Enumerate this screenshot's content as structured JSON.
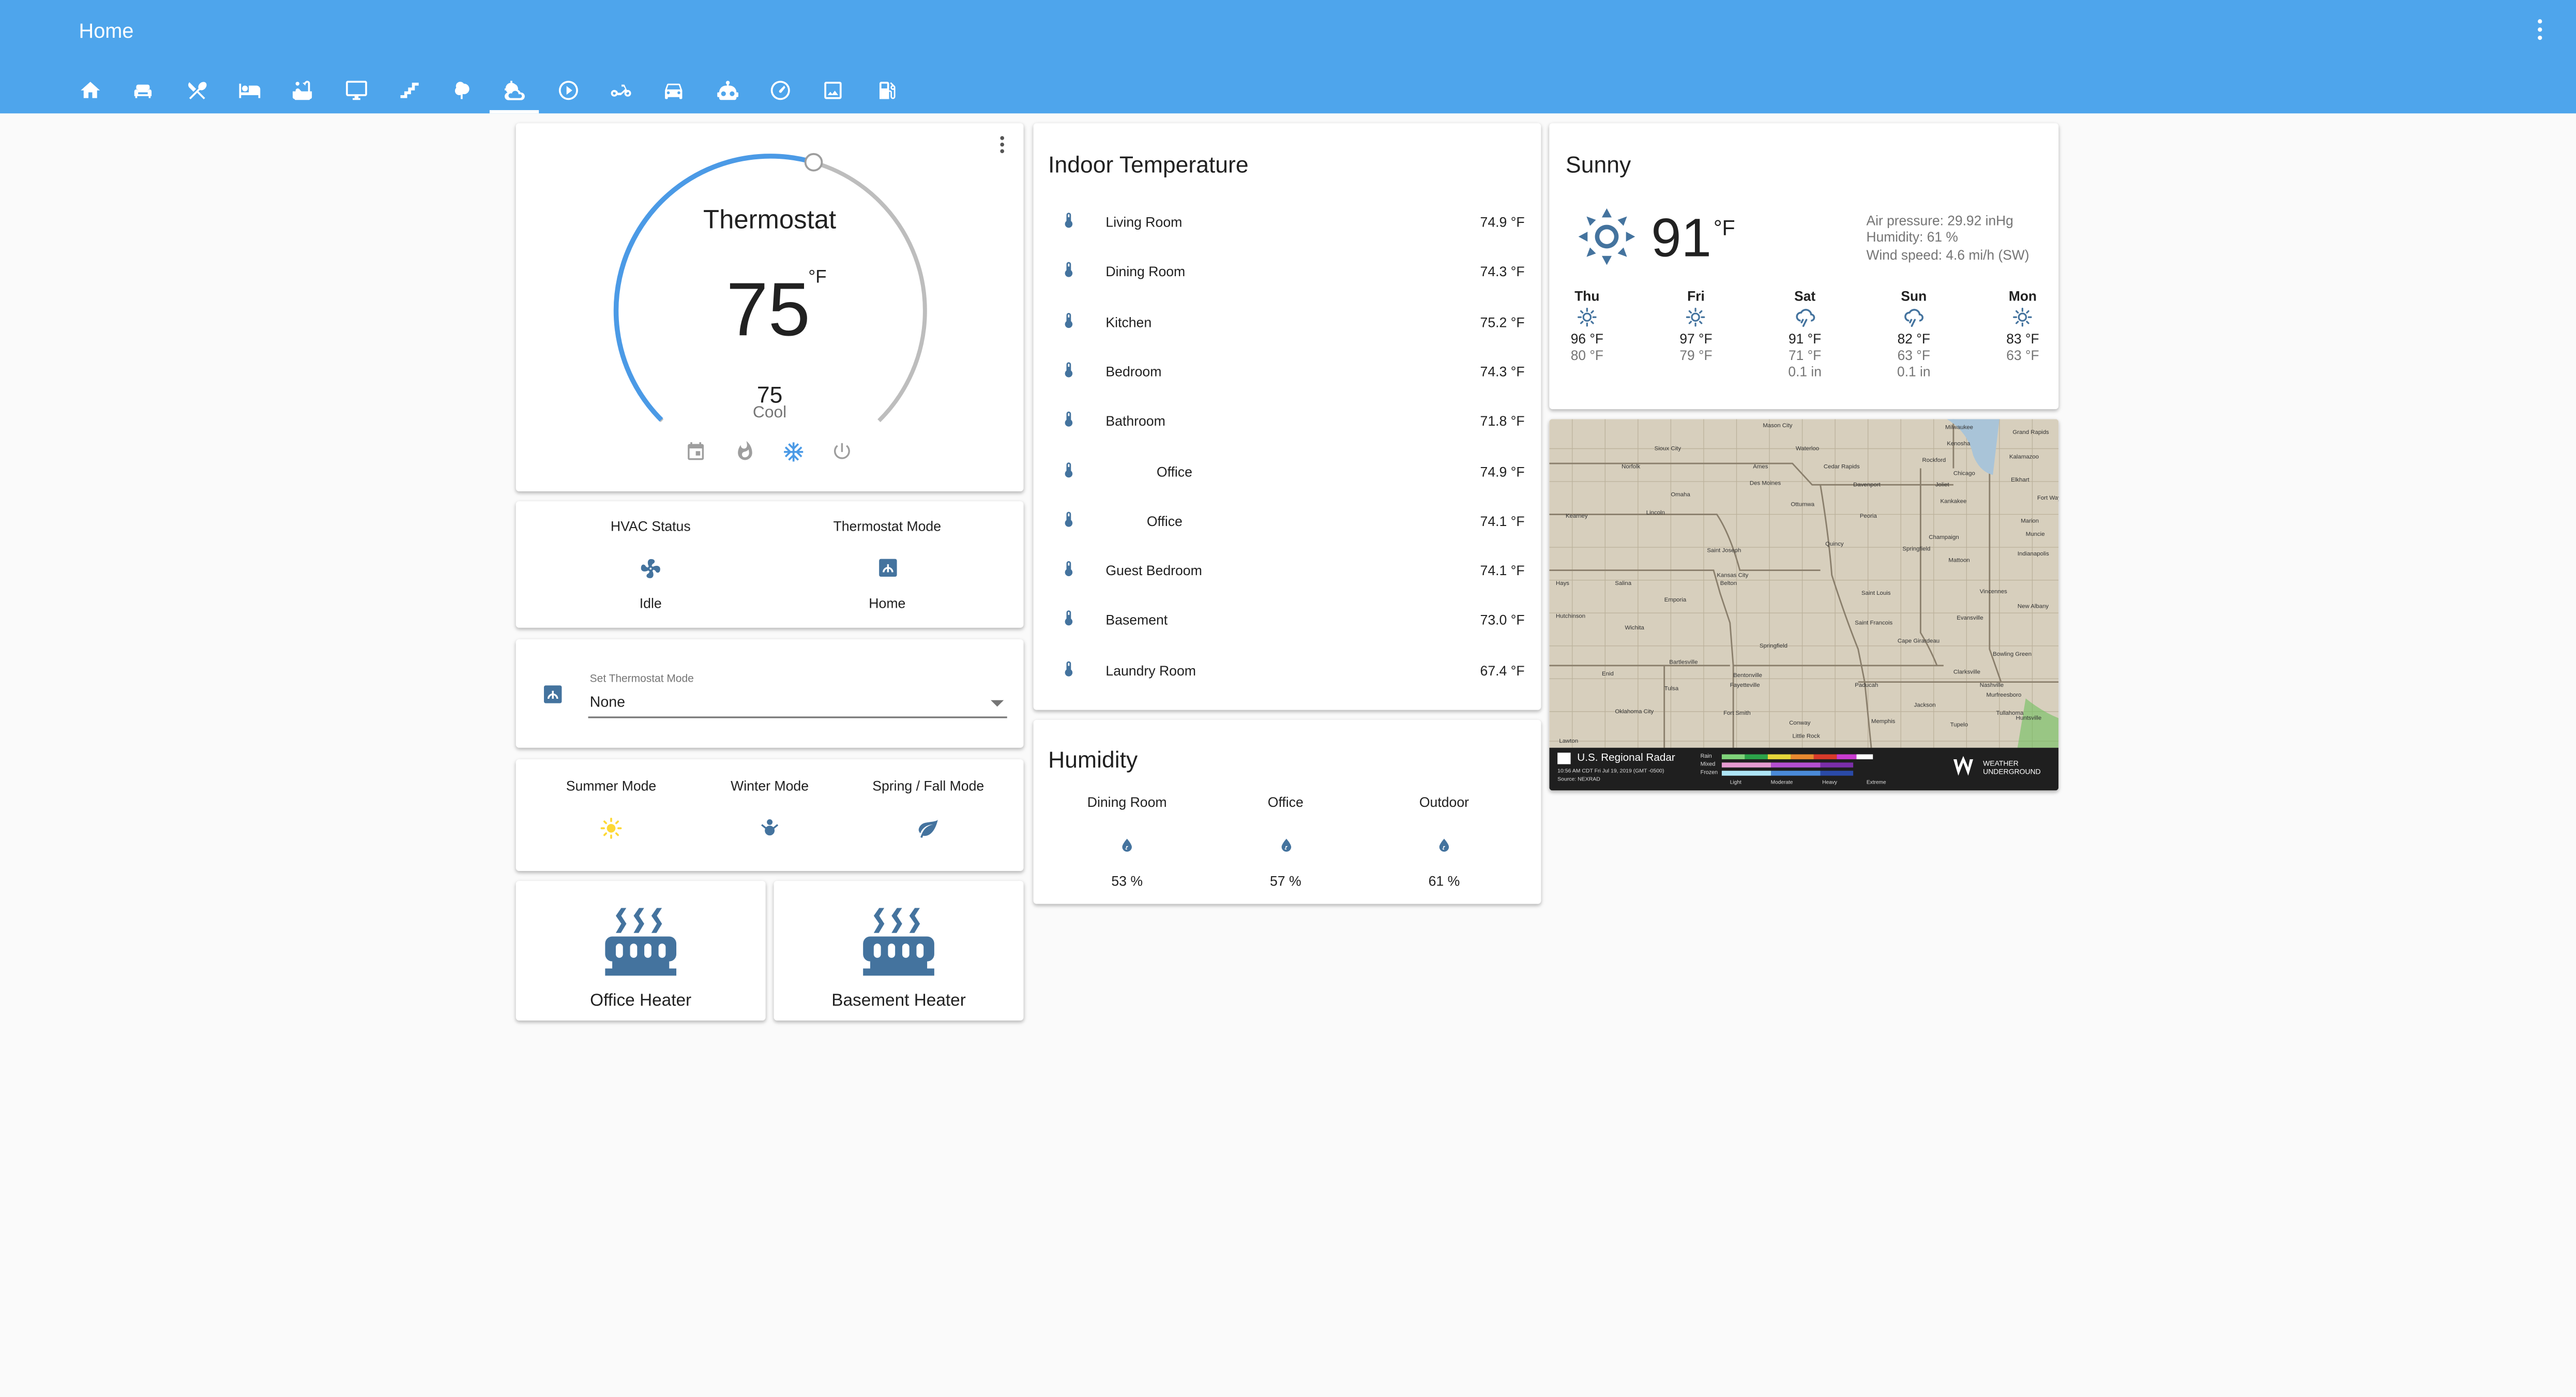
{
  "app": {
    "title": "Home"
  },
  "tabs": [
    {
      "icon": "home-icon"
    },
    {
      "icon": "sofa-icon"
    },
    {
      "icon": "silverware-icon"
    },
    {
      "icon": "bed-icon"
    },
    {
      "icon": "bathtub-icon"
    },
    {
      "icon": "monitor-icon"
    },
    {
      "icon": "stairs-icon"
    },
    {
      "icon": "tree-icon"
    },
    {
      "icon": "weather-partly-cloudy-icon",
      "active": true
    },
    {
      "icon": "play-circle-icon"
    },
    {
      "icon": "motorbike-icon"
    },
    {
      "icon": "car-icon"
    },
    {
      "icon": "robot-icon"
    },
    {
      "icon": "gauge-icon"
    },
    {
      "icon": "image-icon"
    },
    {
      "icon": "gas-station-icon"
    }
  ],
  "thermostat": {
    "name": "Thermostat",
    "current": "75",
    "unit": "°F",
    "target": "75",
    "mode": "Cool",
    "setpoint_fraction": 0.56
  },
  "hvac": {
    "status_label": "HVAC Status",
    "status_value": "Idle",
    "mode_label": "Thermostat Mode",
    "mode_value": "Home"
  },
  "set_mode": {
    "label": "Set Thermostat Mode",
    "value": "None"
  },
  "seasons": [
    {
      "label": "Summer Mode",
      "icon": "sun-icon",
      "color": "#fdd835"
    },
    {
      "label": "Winter Mode",
      "icon": "snowman-icon",
      "color": "#44739e"
    },
    {
      "label": "Spring / Fall Mode",
      "icon": "leaf-icon",
      "color": "#44739e"
    }
  ],
  "heaters": [
    {
      "label": "Office Heater"
    },
    {
      "label": "Basement Heater"
    }
  ],
  "indoor": {
    "title": "Indoor Temperature",
    "rows": [
      {
        "name": "Living Room",
        "value": "74.9 °F"
      },
      {
        "name": "Dining Room",
        "value": "74.3 °F"
      },
      {
        "name": "Kitchen",
        "value": "75.2 °F"
      },
      {
        "name": "Bedroom",
        "value": "74.3 °F"
      },
      {
        "name": "Bathroom",
        "value": "71.8 °F"
      },
      {
        "name": "Office",
        "value": "74.9 °F"
      },
      {
        "name": "Office",
        "value": "74.1 °F"
      },
      {
        "name": "Guest Bedroom",
        "value": "74.1 °F"
      },
      {
        "name": "Basement",
        "value": "73.0 °F"
      },
      {
        "name": "Laundry Room",
        "value": "67.4 °F"
      }
    ]
  },
  "humidity": {
    "title": "Humidity",
    "items": [
      {
        "name": "Dining Room",
        "value": "53 %"
      },
      {
        "name": "Office",
        "value": "57 %"
      },
      {
        "name": "Outdoor",
        "value": "61 %"
      }
    ]
  },
  "weather": {
    "condition": "Sunny",
    "temp": "91",
    "unit": "°F",
    "pressure": "Air pressure: 29.92 inHg",
    "humidity": "Humidity: 61 %",
    "wind": "Wind speed: 4.6 mi/h (SW)",
    "forecast": [
      {
        "day": "Thu",
        "icon": "sun-icon",
        "high": "96 °F",
        "low": "80 °F",
        "precip": ""
      },
      {
        "day": "Fri",
        "icon": "sun-icon",
        "high": "97 °F",
        "low": "79 °F",
        "precip": ""
      },
      {
        "day": "Sat",
        "icon": "rain-cloud-icon",
        "high": "91 °F",
        "low": "71 °F",
        "precip": "0.1 in"
      },
      {
        "day": "Sun",
        "icon": "rain-cloud-icon",
        "high": "82 °F",
        "low": "63 °F",
        "precip": "0.1 in"
      },
      {
        "day": "Mon",
        "icon": "sun-icon",
        "high": "83 °F",
        "low": "63 °F",
        "precip": ""
      }
    ]
  },
  "radar": {
    "title": "U.S. Regional Radar",
    "sub1": "10:56 AM CDT Fri Jul 19, 2019 (GMT -0500)",
    "sub2": "Source: NEXRAD",
    "brand": "WEATHER UNDERGROUND",
    "legend": [
      "Rain",
      "Mixed",
      "Frozen"
    ],
    "scale": [
      "Light",
      "Moderate",
      "Heavy",
      "Extreme"
    ],
    "cities": [
      "Mason City",
      "Waterloo",
      "Milwaukee",
      "Grand Rapids",
      "Sioux City",
      "Kenosha",
      "Kalamazoo",
      "Norfolk",
      "Ames",
      "Cedar Rapids",
      "Rockford",
      "Chicago",
      "Elkhart",
      "Des Moines",
      "Davenport",
      "Joliet",
      "Fort Wayne",
      "Omaha",
      "Ottumwa",
      "Kankakee",
      "Kearney",
      "Lincoln",
      "Peoria",
      "Marion",
      "Quincy",
      "Champaign",
      "Muncie",
      "Springfield",
      "Saint Joseph",
      "Mattoon",
      "Indianapolis",
      "Kansas City",
      "Belton",
      "Hays",
      "Salina",
      "Emporia",
      "Saint Louis",
      "Vincennes",
      "New Albany",
      "Hutchinson",
      "Evansville",
      "Wichita",
      "Saint Francois",
      "Springfield",
      "Cape Girardeau",
      "Bartlesville",
      "Bowling Green",
      "Enid",
      "Tulsa",
      "Bentonville",
      "Fayetteville",
      "Clarksville",
      "Paducah",
      "Nashville",
      "Jackson",
      "Murfreesboro",
      "Oklahoma City",
      "Fort Smith",
      "Conway",
      "Memphis",
      "Tullahoma",
      "Lawton",
      "Little Rock",
      "Tupelo",
      "Huntsville"
    ]
  }
}
